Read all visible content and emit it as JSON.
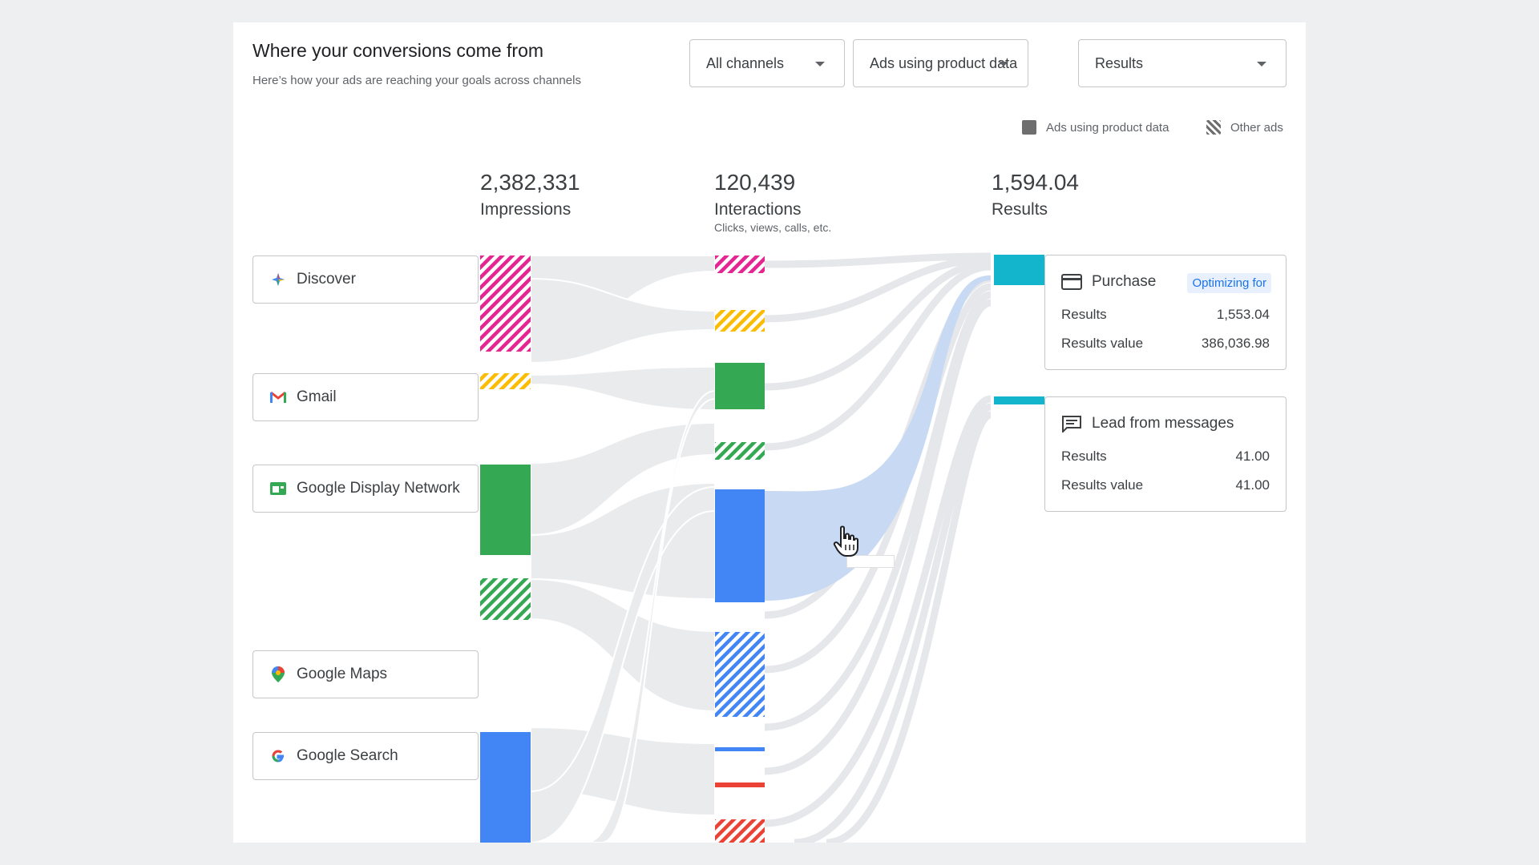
{
  "header": {
    "title": "Where your conversions come from",
    "subtitle": "Here’s how your ads are reaching your goals across channels"
  },
  "filters": [
    {
      "label": "All channels"
    },
    {
      "label": "Ads using product data"
    },
    {
      "label": "Results"
    }
  ],
  "legend": {
    "product_data": "Ads using product data",
    "other_ads": "Other ads"
  },
  "stats": {
    "impressions": {
      "value": "2,382,331",
      "label": "Impressions"
    },
    "interactions": {
      "value": "120,439",
      "label": "Interactions",
      "sublabel": "Clicks, views, calls, etc."
    },
    "results": {
      "value": "1,594.04",
      "label": "Results"
    }
  },
  "channels": [
    {
      "label": "Discover",
      "icon": "discover-icon"
    },
    {
      "label": "Gmail",
      "icon": "gmail-icon"
    },
    {
      "label": "Google Display Network",
      "icon": "display-network-icon"
    },
    {
      "label": "Google Maps",
      "icon": "maps-pin-icon"
    },
    {
      "label": "Google Search",
      "icon": "google-g-icon"
    }
  ],
  "results": [
    {
      "title": "Purchase",
      "icon": "credit-card-icon",
      "badge": "Optimizing for",
      "rows": [
        {
          "label": "Results",
          "value": "1,553.04"
        },
        {
          "label": "Results value",
          "value": "386,036.98"
        }
      ]
    },
    {
      "title": "Lead from messages",
      "icon": "chat-icon",
      "rows": [
        {
          "label": "Results",
          "value": "41.00"
        },
        {
          "label": "Results value",
          "value": "41.00"
        }
      ]
    }
  ],
  "colors": {
    "discover": "#e52592",
    "gmail": "#fbbc04",
    "display": "#34a853",
    "search": "#4285f4",
    "red": "#ea4335",
    "results": "#12b5cb",
    "flow": "#eaebed",
    "flow_highlight": "#c8daf3"
  }
}
